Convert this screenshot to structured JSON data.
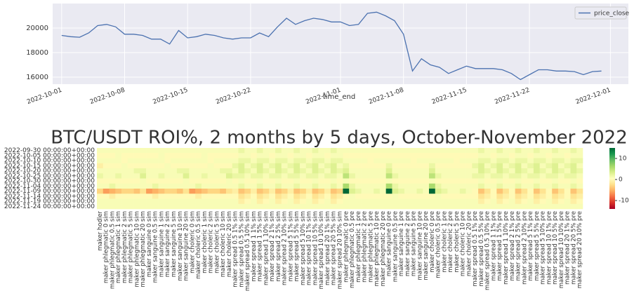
{
  "chart_data": [
    {
      "type": "line",
      "x": [
        "2022-10-01",
        "2022-10-02",
        "2022-10-03",
        "2022-10-04",
        "2022-10-05",
        "2022-10-06",
        "2022-10-07",
        "2022-10-08",
        "2022-10-09",
        "2022-10-10",
        "2022-10-11",
        "2022-10-12",
        "2022-10-13",
        "2022-10-14",
        "2022-10-15",
        "2022-10-16",
        "2022-10-17",
        "2022-10-18",
        "2022-10-19",
        "2022-10-20",
        "2022-10-21",
        "2022-10-22",
        "2022-10-23",
        "2022-10-24",
        "2022-10-25",
        "2022-10-26",
        "2022-10-27",
        "2022-10-28",
        "2022-10-29",
        "2022-10-30",
        "2022-10-31",
        "2022-11-01",
        "2022-11-02",
        "2022-11-03",
        "2022-11-04",
        "2022-11-05",
        "2022-11-06",
        "2022-11-07",
        "2022-11-08",
        "2022-11-09",
        "2022-11-10",
        "2022-11-11",
        "2022-11-12",
        "2022-11-13",
        "2022-11-14",
        "2022-11-15",
        "2022-11-16",
        "2022-11-17",
        "2022-11-18",
        "2022-11-19",
        "2022-11-20",
        "2022-11-21",
        "2022-11-22",
        "2022-11-23",
        "2022-11-24",
        "2022-11-25",
        "2022-11-26",
        "2022-11-27",
        "2022-11-28",
        "2022-11-29",
        "2022-11-30"
      ],
      "series": [
        {
          "name": "price_close",
          "color": "#4c72b0",
          "values": [
            19400,
            19300,
            19250,
            19600,
            20200,
            20300,
            20100,
            19500,
            19500,
            19400,
            19100,
            19100,
            18700,
            19800,
            19200,
            19300,
            19500,
            19400,
            19200,
            19100,
            19200,
            19200,
            19600,
            19300,
            20100,
            20800,
            20300,
            20600,
            20800,
            20700,
            20500,
            20500,
            20200,
            20300,
            21200,
            21300,
            21000,
            20600,
            19500,
            16500,
            17500,
            17000,
            16800,
            16300,
            16600,
            16900,
            16700,
            16700,
            16700,
            16600,
            16300,
            15800,
            16200,
            16600,
            16600,
            16500,
            16500,
            16450,
            16200,
            16450,
            16500
          ]
        }
      ],
      "xlabel": "time_end",
      "xlim": [
        "2022-09-30",
        "2022-12-03"
      ],
      "xticks": [
        "2022-10-01",
        "2022-10-08",
        "2022-10-15",
        "2022-10-22",
        "2022-11-01",
        "2022-11-08",
        "2022-11-15",
        "2022-11-22",
        "2022-12-01"
      ],
      "ylim": [
        15430,
        22000
      ],
      "yticks": [
        16000,
        18000,
        20000
      ],
      "grid": true,
      "legend": "upper right"
    },
    {
      "type": "heatmap",
      "title": "BTC/USDT ROI%, 2 months by 5 days, October-November 2022",
      "rows": [
        "2022-09-30 00:00:00+00:00",
        "2022-10-05 00:00:00+00:00",
        "2022-10-10 00:00:00+00:00",
        "2022-10-15 00:00:00+00:00",
        "2022-10-20 00:00:00+00:00",
        "2022-10-25 00:00:00+00:00",
        "2022-10-30 00:00:00+00:00",
        "2022-11-04 00:00:00+00:00",
        "2022-11-09 00:00:00+00:00",
        "2022-11-14 00:00:00+00:00",
        "2022-11-19 00:00:00+00:00",
        "2022-11-24 00:00:00+00:00"
      ],
      "columns": [
        "maker hodler",
        "maker phlegmatic 0 sim",
        "maker phlegmatic 0.5 sim",
        "maker phlegmatic 1 sim",
        "maker phlegmatic 2 sim",
        "maker phlegmatic 5 sim",
        "maker phlegmatic 10 sim",
        "maker phlegmatic 20 sim",
        "maker sanguine 0 sim",
        "maker sanguine 0.5 sim",
        "maker sanguine 1 sim",
        "maker sanguine 2 sim",
        "maker sanguine 5 sim",
        "maker sanguine 10 sim",
        "maker sanguine 20 sim",
        "maker choleric 0 sim",
        "maker choleric 0.5 sim",
        "maker choleric 1 sim",
        "maker choleric 2 sim",
        "maker choleric 5 sim",
        "maker choleric 10 sim",
        "maker choleric 20 sim",
        "maker spread 0.5 1% sim",
        "maker spread 0.5 5% sim",
        "maker spread 0.5 10% sim",
        "maker spread 1 1% sim",
        "maker spread 1 5% sim",
        "maker spread 1 10% sim",
        "maker spread 2 1% sim",
        "maker spread 2 5% sim",
        "maker spread 2 10% sim",
        "maker spread 5 1% sim",
        "maker spread 5 5% sim",
        "maker spread 5 10% sim",
        "maker spread 10 1% sim",
        "maker spread 10 5% sim",
        "maker spread 10 10% sim",
        "maker spread 20 1% sim",
        "maker spread 20 5% sim",
        "maker spread 20 10% sim",
        "maker phlegmatic 0 pre",
        "maker phlegmatic 0.5 pre",
        "maker phlegmatic 1 pre",
        "maker phlegmatic 2 pre",
        "maker phlegmatic 5 pre",
        "maker phlegmatic 10 pre",
        "maker phlegmatic 20 pre",
        "maker sanguine 0 pre",
        "maker sanguine 0.5 pre",
        "maker sanguine 1 pre",
        "maker sanguine 2 pre",
        "maker sanguine 5 pre",
        "maker sanguine 10 pre",
        "maker sanguine 20 pre",
        "maker choleric 0 pre",
        "maker choleric 0.5 pre",
        "maker choleric 1 pre",
        "maker choleric 2 pre",
        "maker choleric 5 pre",
        "maker choleric 10 pre",
        "maker choleric 20 pre",
        "maker spread 0.5 1% pre",
        "maker spread 0.5 5% pre",
        "maker spread 0.5 10% pre",
        "maker spread 1 1% pre",
        "maker spread 1 5% pre",
        "maker spread 1 10% pre",
        "maker spread 2 1% pre",
        "maker spread 2 5% pre",
        "maker spread 2 10% pre",
        "maker spread 5 1% pre",
        "maker spread 5 5% pre",
        "maker spread 5 10% pre",
        "maker spread 10 1% pre",
        "maker spread 10 5% pre",
        "maker spread 10 10% pre",
        "maker spread 20 1% pre",
        "maker spread 20 5% pre",
        "maker spread 20 10% pre"
      ],
      "values": [
        [
          1,
          1,
          1,
          1,
          1,
          1,
          1,
          1,
          1,
          1,
          1,
          1,
          1,
          1,
          1,
          1,
          1,
          1,
          1,
          1,
          1,
          1,
          1,
          2,
          1,
          1,
          2,
          1,
          1,
          2,
          1,
          1,
          2,
          1,
          1,
          2,
          1,
          1,
          2,
          1,
          1,
          1,
          1,
          1,
          1,
          1,
          1,
          1,
          1,
          1,
          1,
          1,
          1,
          1,
          1,
          1,
          1,
          1,
          1,
          1,
          1,
          1,
          2,
          1,
          1,
          2,
          1,
          1,
          2,
          1,
          1,
          2,
          1,
          1,
          2,
          1,
          1,
          2,
          1
        ],
        [
          0,
          0,
          0,
          1,
          0,
          0,
          0,
          0,
          0,
          0,
          1,
          0,
          0,
          0,
          0,
          0,
          0,
          1,
          0,
          0,
          0,
          0,
          0,
          1,
          1,
          0,
          1,
          1,
          0,
          1,
          1,
          0,
          1,
          1,
          0,
          1,
          1,
          0,
          1,
          1,
          0,
          0,
          0,
          0,
          0,
          0,
          0,
          0,
          0,
          0,
          0,
          0,
          0,
          0,
          0,
          0,
          0,
          0,
          0,
          0,
          0,
          0,
          1,
          1,
          0,
          1,
          1,
          0,
          1,
          1,
          0,
          1,
          1,
          0,
          1,
          1,
          0,
          1,
          1
        ],
        [
          1,
          1,
          1,
          1,
          0,
          1,
          1,
          1,
          1,
          1,
          1,
          0,
          1,
          1,
          1,
          1,
          1,
          1,
          0,
          1,
          1,
          1,
          1,
          2,
          2,
          1,
          2,
          2,
          1,
          2,
          2,
          1,
          2,
          2,
          1,
          2,
          2,
          1,
          2,
          2,
          1,
          1,
          1,
          1,
          0,
          1,
          1,
          1,
          1,
          1,
          1,
          0,
          1,
          1,
          1,
          1,
          1,
          1,
          0,
          1,
          1,
          1,
          2,
          2,
          1,
          2,
          2,
          1,
          2,
          2,
          1,
          2,
          2,
          1,
          2,
          2,
          1,
          2,
          2
        ],
        [
          -1,
          0,
          0,
          0,
          1,
          0,
          0,
          0,
          0,
          0,
          0,
          1,
          0,
          0,
          0,
          0,
          0,
          0,
          1,
          0,
          0,
          0,
          2,
          3,
          1,
          2,
          3,
          1,
          2,
          3,
          1,
          2,
          3,
          1,
          2,
          3,
          1,
          2,
          3,
          1,
          2,
          0,
          0,
          0,
          0,
          0,
          0,
          2,
          0,
          0,
          0,
          0,
          0,
          0,
          2,
          0,
          0,
          0,
          0,
          0,
          0,
          2,
          3,
          1,
          2,
          3,
          1,
          2,
          3,
          1,
          2,
          3,
          1,
          2,
          3,
          1,
          2,
          3,
          1
        ],
        [
          1,
          1,
          1,
          1,
          1,
          1,
          2,
          2,
          1,
          1,
          1,
          1,
          1,
          2,
          2,
          1,
          1,
          1,
          1,
          1,
          2,
          2,
          1,
          3,
          2,
          1,
          3,
          2,
          1,
          3,
          2,
          1,
          3,
          2,
          1,
          3,
          2,
          1,
          3,
          2,
          3,
          1,
          1,
          1,
          1,
          1,
          1,
          3,
          1,
          1,
          1,
          1,
          1,
          1,
          3,
          1,
          1,
          1,
          1,
          1,
          1,
          1,
          3,
          2,
          1,
          3,
          2,
          1,
          3,
          2,
          1,
          3,
          2,
          1,
          3,
          2,
          1,
          3,
          2
        ],
        [
          2,
          1,
          1,
          2,
          1,
          1,
          1,
          3,
          1,
          1,
          2,
          1,
          1,
          1,
          3,
          1,
          1,
          2,
          1,
          1,
          1,
          3,
          2,
          2,
          1,
          2,
          2,
          1,
          2,
          2,
          1,
          2,
          2,
          1,
          2,
          2,
          1,
          2,
          2,
          1,
          5,
          2,
          1,
          1,
          1,
          1,
          1,
          5,
          2,
          1,
          1,
          1,
          1,
          1,
          5,
          2,
          1,
          1,
          1,
          1,
          1,
          2,
          2,
          1,
          2,
          2,
          1,
          2,
          2,
          1,
          2,
          2,
          1,
          2,
          2,
          1,
          2,
          2,
          1
        ],
        [
          0,
          0,
          0,
          0,
          0,
          0,
          0,
          1,
          0,
          0,
          0,
          0,
          0,
          0,
          1,
          0,
          0,
          0,
          0,
          0,
          0,
          1,
          0,
          1,
          0,
          0,
          1,
          0,
          0,
          1,
          0,
          0,
          1,
          0,
          0,
          1,
          0,
          0,
          1,
          0,
          1,
          0,
          0,
          0,
          0,
          0,
          0,
          1,
          0,
          0,
          0,
          0,
          0,
          0,
          1,
          0,
          0,
          0,
          0,
          0,
          0,
          0,
          1,
          0,
          0,
          1,
          0,
          0,
          1,
          0,
          0,
          1,
          0,
          0,
          1,
          0,
          0,
          1,
          0
        ],
        [
          1,
          1,
          2,
          1,
          1,
          1,
          1,
          1,
          1,
          2,
          1,
          1,
          1,
          1,
          1,
          1,
          2,
          1,
          1,
          1,
          1,
          1,
          1,
          2,
          1,
          1,
          2,
          1,
          1,
          2,
          1,
          1,
          2,
          1,
          1,
          2,
          1,
          1,
          2,
          1,
          6,
          2,
          1,
          1,
          1,
          1,
          1,
          6,
          2,
          1,
          1,
          1,
          1,
          1,
          6,
          2,
          1,
          1,
          1,
          1,
          1,
          1,
          2,
          1,
          1,
          2,
          1,
          1,
          2,
          1,
          1,
          2,
          1,
          1,
          2,
          1,
          1,
          2,
          1
        ],
        [
          -3,
          -6,
          -5,
          -4,
          -3,
          -3,
          -4,
          -2,
          -6,
          -5,
          -4,
          -3,
          -3,
          -4,
          -2,
          -6,
          -5,
          -4,
          -3,
          -3,
          -4,
          -2,
          -1,
          -4,
          -3,
          -1,
          -4,
          -3,
          -1,
          -4,
          -3,
          -1,
          -4,
          -3,
          -1,
          -4,
          -3,
          -1,
          -4,
          -3,
          15,
          3,
          2,
          1,
          1,
          2,
          1,
          15,
          3,
          2,
          1,
          1,
          2,
          1,
          15,
          3,
          2,
          1,
          1,
          2,
          1,
          0,
          -4,
          -2,
          0,
          -4,
          -2,
          0,
          -4,
          -2,
          0,
          -4,
          -2,
          0,
          -4,
          -2,
          0,
          -4,
          -2
        ],
        [
          0,
          0,
          -1,
          0,
          0,
          0,
          0,
          0,
          0,
          -1,
          0,
          0,
          0,
          0,
          0,
          0,
          -1,
          0,
          0,
          0,
          0,
          0,
          0,
          -2,
          -1,
          0,
          -2,
          -1,
          0,
          -2,
          -1,
          0,
          -2,
          -1,
          0,
          -2,
          -1,
          0,
          -2,
          -1,
          0,
          1,
          0,
          0,
          0,
          0,
          0,
          0,
          1,
          0,
          0,
          0,
          0,
          0,
          0,
          1,
          0,
          0,
          0,
          0,
          0,
          0,
          -2,
          -1,
          0,
          -2,
          -1,
          0,
          -2,
          -1,
          0,
          -2,
          -1,
          0,
          -2,
          -1,
          0,
          -2,
          -1
        ],
        [
          1,
          1,
          1,
          1,
          1,
          1,
          1,
          1,
          1,
          1,
          1,
          1,
          1,
          1,
          1,
          1,
          1,
          1,
          1,
          1,
          1,
          1,
          1,
          -1,
          0,
          1,
          -1,
          0,
          1,
          -1,
          0,
          1,
          -1,
          0,
          1,
          -1,
          0,
          1,
          -1,
          0,
          1,
          1,
          1,
          1,
          1,
          1,
          1,
          1,
          1,
          1,
          1,
          1,
          1,
          1,
          1,
          1,
          1,
          1,
          1,
          1,
          1,
          1,
          -1,
          0,
          1,
          -1,
          0,
          1,
          -1,
          0,
          1,
          -1,
          0,
          1,
          -1,
          0,
          1,
          -1,
          0
        ],
        [
          1,
          1,
          1,
          1,
          1,
          1,
          1,
          1,
          1,
          1,
          1,
          1,
          1,
          1,
          1,
          1,
          1,
          1,
          1,
          1,
          1,
          1,
          1,
          1,
          1,
          1,
          1,
          1,
          1,
          1,
          1,
          1,
          1,
          1,
          1,
          1,
          1,
          1,
          1,
          1,
          1,
          1,
          1,
          1,
          1,
          1,
          1,
          1,
          1,
          1,
          1,
          1,
          1,
          1,
          1,
          1,
          1,
          1,
          1,
          1,
          1,
          1,
          1,
          1,
          1,
          1,
          1,
          1,
          1,
          1,
          1,
          1,
          1,
          1,
          1,
          1,
          1,
          1,
          1
        ]
      ],
      "colormap": "RdYlGn",
      "clim": [
        -14,
        15
      ],
      "cticks": [
        10,
        0,
        -10
      ]
    }
  ]
}
